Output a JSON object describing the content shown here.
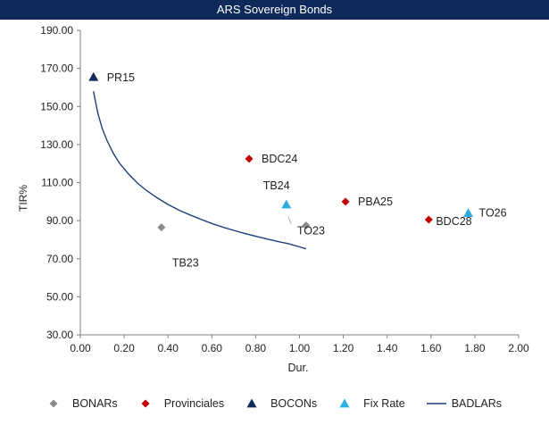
{
  "chart_data": {
    "type": "scatter",
    "title": "ARS Sovereign Bonds",
    "xlabel": "Dur.",
    "ylabel": "TIR%",
    "xlim": [
      0,
      2
    ],
    "ylim": [
      30,
      190
    ],
    "x_ticks": [
      "0.00",
      "0.20",
      "0.40",
      "0.60",
      "0.80",
      "1.00",
      "1.20",
      "1.40",
      "1.60",
      "1.80",
      "2.00"
    ],
    "y_ticks": [
      "30.00",
      "50.00",
      "70.00",
      "90.00",
      "110.00",
      "130.00",
      "150.00",
      "170.00",
      "190.00"
    ],
    "x_tick_values": [
      0,
      0.2,
      0.4,
      0.6,
      0.8,
      1.0,
      1.2,
      1.4,
      1.6,
      1.8,
      2.0
    ],
    "y_tick_values": [
      30,
      50,
      70,
      90,
      110,
      130,
      150,
      170,
      190
    ],
    "legend_position": "bottom",
    "series": [
      {
        "name": "BONARs",
        "marker": "diamond",
        "color": "#8c8c8c",
        "points": [
          {
            "label": "TB23",
            "x": 0.37,
            "y": 86.5
          },
          {
            "label": "TO23",
            "x": 1.03,
            "y": 87.5
          }
        ]
      },
      {
        "name": "Provinciales",
        "marker": "diamond",
        "color": "#c00000",
        "points": [
          {
            "label": "BDC24",
            "x": 0.77,
            "y": 122.5
          },
          {
            "label": "PBA25",
            "x": 1.21,
            "y": 100.0
          },
          {
            "label": "BDC28",
            "x": 1.59,
            "y": 90.5
          }
        ]
      },
      {
        "name": "BOCONs",
        "marker": "triangle",
        "color": "#0e2a5a",
        "points": [
          {
            "label": "PR15",
            "x": 0.06,
            "y": 165.5
          }
        ]
      },
      {
        "name": "Fix Rate",
        "marker": "triangle",
        "color": "#2eaee0",
        "points": [
          {
            "label": "TB24",
            "x": 0.94,
            "y": 98.5
          },
          {
            "label": "TO26",
            "x": 1.77,
            "y": 94.0
          }
        ]
      },
      {
        "name": "BADLARs",
        "type": "line",
        "color": "#1f3d7a",
        "x": [
          0.06,
          0.08,
          0.1,
          0.12,
          0.15,
          0.18,
          0.22,
          0.26,
          0.3,
          0.35,
          0.4,
          0.45,
          0.5,
          0.55,
          0.6,
          0.65,
          0.7,
          0.75,
          0.8,
          0.85,
          0.9,
          0.95,
          1.0,
          1.03
        ],
        "y": [
          158.0,
          146.5,
          138.5,
          132.5,
          125.5,
          120.0,
          114.5,
          109.8,
          106.0,
          102.0,
          98.5,
          95.5,
          93.0,
          90.7,
          88.5,
          86.6,
          84.9,
          83.3,
          81.8,
          80.4,
          79.1,
          77.9,
          76.2,
          75.2
        ]
      }
    ]
  }
}
